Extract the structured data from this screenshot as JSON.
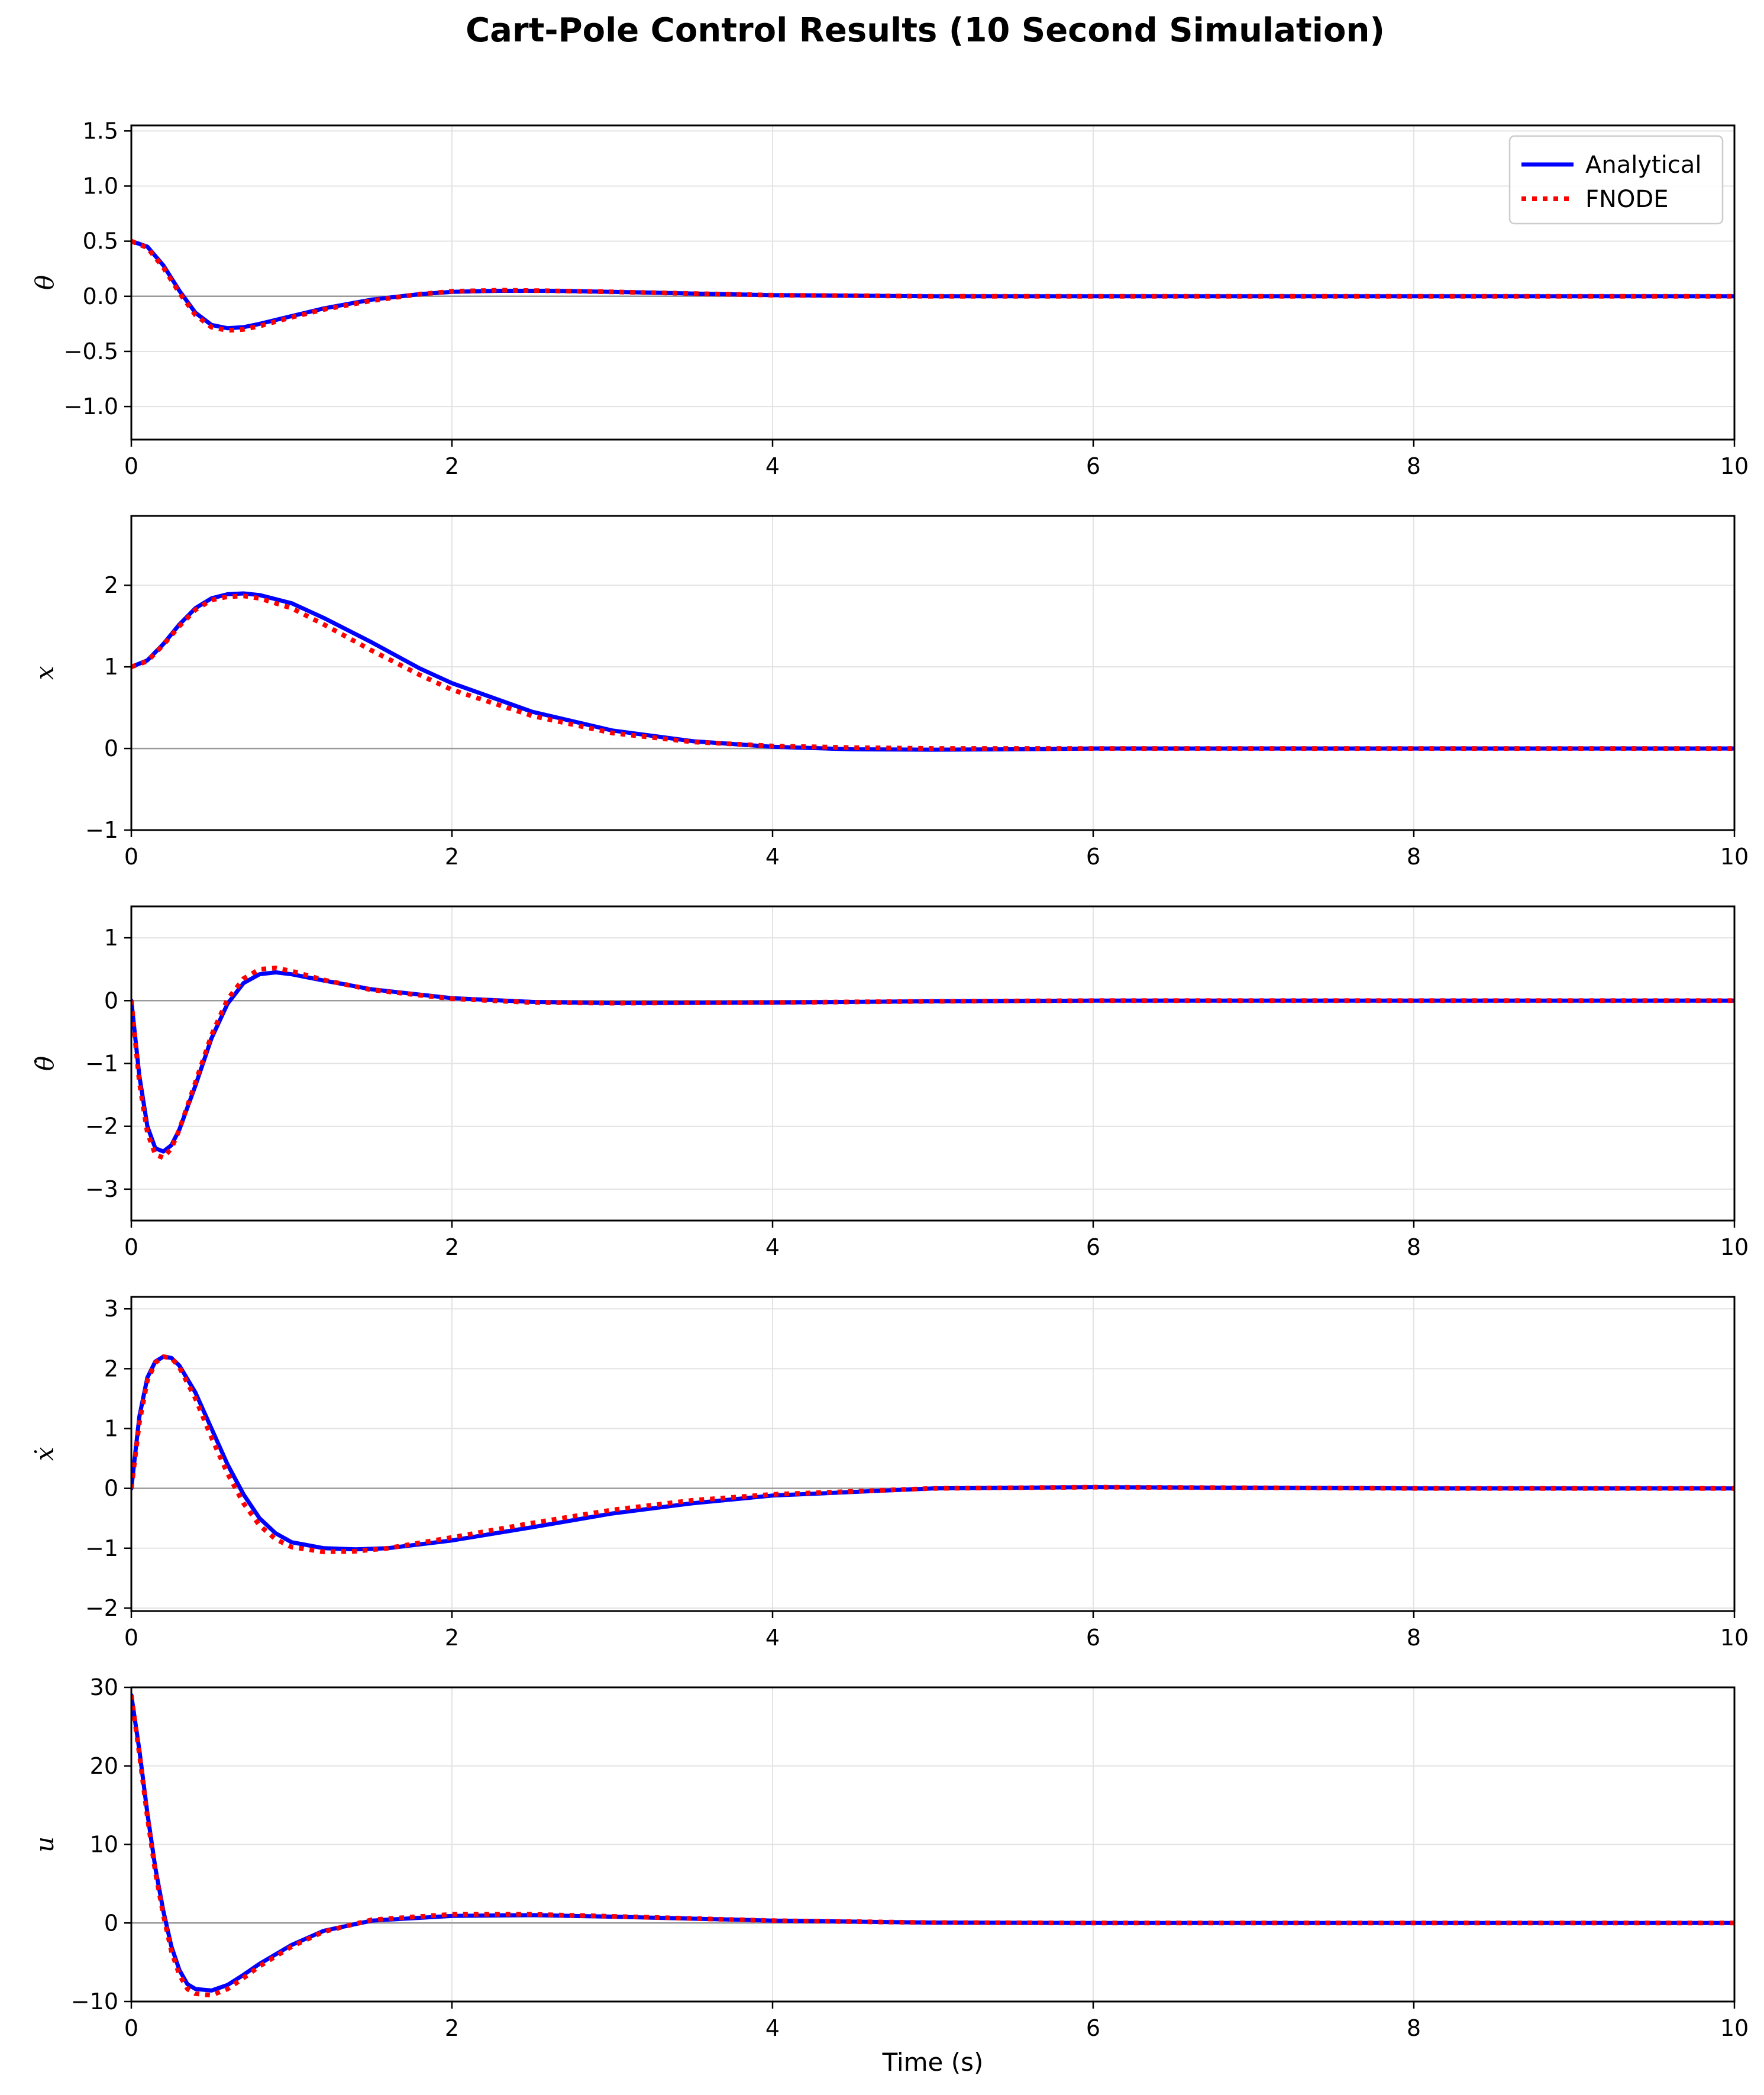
{
  "figure": {
    "title": "Cart-Pole Control Results (10 Second Simulation)",
    "xlabel": "Time (s)"
  },
  "legend": {
    "placement": "top-right of first panel",
    "entries": [
      {
        "name": "Analytical",
        "color": "#0000ff",
        "style": "solid"
      },
      {
        "name": "FNODE",
        "color": "#ff0000",
        "style": "dotted"
      }
    ]
  },
  "chart_data": [
    {
      "type": "line",
      "ylabel": "θ",
      "xlim": [
        0,
        10
      ],
      "ylim": [
        -1.3,
        1.55
      ],
      "xticks": [
        0,
        2,
        4,
        6,
        8,
        10
      ],
      "yticks": [
        -1.0,
        -0.5,
        0.0,
        0.5,
        1.0,
        1.5
      ],
      "ytick_labels": [
        "−1.0",
        "−0.5",
        "0.0",
        "0.5",
        "1.0",
        "1.5"
      ],
      "grid": true,
      "series": [
        {
          "name": "Analytical",
          "color": "#0000ff",
          "style": "solid",
          "x": [
            0,
            0.1,
            0.2,
            0.3,
            0.4,
            0.5,
            0.6,
            0.7,
            0.8,
            1.0,
            1.2,
            1.5,
            1.8,
            2.0,
            2.3,
            2.6,
            3.0,
            3.5,
            4.0,
            5.0,
            6.0,
            8.0,
            10.0
          ],
          "y": [
            0.5,
            0.45,
            0.28,
            0.05,
            -0.15,
            -0.26,
            -0.29,
            -0.28,
            -0.25,
            -0.18,
            -0.11,
            -0.03,
            0.02,
            0.04,
            0.05,
            0.05,
            0.04,
            0.025,
            0.01,
            0.0,
            0.0,
            0.0,
            0.0
          ]
        },
        {
          "name": "FNODE",
          "color": "#ff0000",
          "style": "dotted",
          "x": [
            0,
            0.1,
            0.2,
            0.3,
            0.4,
            0.5,
            0.6,
            0.7,
            0.8,
            1.0,
            1.2,
            1.5,
            1.8,
            2.0,
            2.3,
            2.6,
            3.0,
            3.5,
            4.0,
            5.0,
            6.0,
            8.0,
            10.0
          ],
          "y": [
            0.5,
            0.44,
            0.26,
            0.03,
            -0.17,
            -0.28,
            -0.31,
            -0.3,
            -0.27,
            -0.19,
            -0.12,
            -0.04,
            0.02,
            0.045,
            0.055,
            0.05,
            0.04,
            0.025,
            0.01,
            0.0,
            0.0,
            0.0,
            0.0
          ]
        }
      ]
    },
    {
      "type": "line",
      "ylabel": "x",
      "xlim": [
        0,
        10
      ],
      "ylim": [
        -1.0,
        2.85
      ],
      "xticks": [
        0,
        2,
        4,
        6,
        8,
        10
      ],
      "yticks": [
        -1,
        0,
        1,
        2
      ],
      "ytick_labels": [
        "−1",
        "0",
        "1",
        "2"
      ],
      "grid": true,
      "series": [
        {
          "name": "Analytical",
          "color": "#0000ff",
          "style": "solid",
          "x": [
            0,
            0.1,
            0.2,
            0.3,
            0.4,
            0.5,
            0.6,
            0.7,
            0.8,
            1.0,
            1.2,
            1.5,
            1.8,
            2.0,
            2.5,
            3.0,
            3.5,
            4.0,
            4.5,
            5.0,
            5.5,
            6.0,
            8.0,
            10.0
          ],
          "y": [
            1.0,
            1.08,
            1.28,
            1.52,
            1.72,
            1.84,
            1.89,
            1.9,
            1.88,
            1.78,
            1.6,
            1.3,
            0.98,
            0.8,
            0.45,
            0.22,
            0.09,
            0.02,
            -0.01,
            -0.015,
            -0.01,
            0.0,
            0.0,
            0.0
          ]
        },
        {
          "name": "FNODE",
          "color": "#ff0000",
          "style": "dotted",
          "x": [
            0,
            0.1,
            0.2,
            0.3,
            0.4,
            0.5,
            0.6,
            0.7,
            0.8,
            1.0,
            1.2,
            1.5,
            1.8,
            2.0,
            2.5,
            3.0,
            3.5,
            4.0,
            4.5,
            5.0,
            5.5,
            6.0,
            8.0,
            10.0
          ],
          "y": [
            1.0,
            1.07,
            1.27,
            1.5,
            1.7,
            1.82,
            1.86,
            1.87,
            1.84,
            1.72,
            1.52,
            1.2,
            0.9,
            0.72,
            0.4,
            0.19,
            0.08,
            0.03,
            0.01,
            0.0,
            0.0,
            0.0,
            0.0,
            0.0
          ]
        }
      ]
    },
    {
      "type": "line",
      "ylabel": "θ̇",
      "xlim": [
        0,
        10
      ],
      "ylim": [
        -3.5,
        1.5
      ],
      "xticks": [
        0,
        2,
        4,
        6,
        8,
        10
      ],
      "yticks": [
        -3,
        -2,
        -1,
        0,
        1
      ],
      "ytick_labels": [
        "−3",
        "−2",
        "−1",
        "0",
        "1"
      ],
      "grid": true,
      "series": [
        {
          "name": "Analytical",
          "color": "#0000ff",
          "style": "solid",
          "x": [
            0,
            0.05,
            0.1,
            0.15,
            0.2,
            0.25,
            0.3,
            0.4,
            0.5,
            0.6,
            0.7,
            0.8,
            0.9,
            1.0,
            1.2,
            1.5,
            2.0,
            2.5,
            3.0,
            4.0,
            5.0,
            6.0,
            8.0,
            10.0
          ],
          "y": [
            0,
            -1.2,
            -2.0,
            -2.35,
            -2.4,
            -2.3,
            -2.05,
            -1.35,
            -0.6,
            -0.05,
            0.28,
            0.42,
            0.45,
            0.42,
            0.32,
            0.18,
            0.04,
            -0.02,
            -0.04,
            -0.03,
            -0.01,
            0.0,
            0.0,
            0.0
          ]
        },
        {
          "name": "FNODE",
          "color": "#ff0000",
          "style": "dotted",
          "x": [
            0,
            0.05,
            0.1,
            0.15,
            0.2,
            0.25,
            0.3,
            0.4,
            0.5,
            0.6,
            0.7,
            0.8,
            0.9,
            1.0,
            1.2,
            1.5,
            2.0,
            2.5,
            3.0,
            4.0,
            5.0,
            6.0,
            8.0,
            10.0
          ],
          "y": [
            0,
            -1.3,
            -2.1,
            -2.45,
            -2.5,
            -2.35,
            -2.05,
            -1.3,
            -0.55,
            0.02,
            0.35,
            0.5,
            0.52,
            0.47,
            0.33,
            0.17,
            0.03,
            -0.03,
            -0.04,
            -0.03,
            -0.01,
            0.0,
            0.0,
            0.0
          ]
        }
      ]
    },
    {
      "type": "line",
      "ylabel": "ẋ",
      "xlim": [
        0,
        10
      ],
      "ylim": [
        -2.05,
        3.2
      ],
      "xticks": [
        0,
        2,
        4,
        6,
        8,
        10
      ],
      "yticks": [
        -2,
        -1,
        0,
        1,
        2,
        3
      ],
      "ytick_labels": [
        "−2",
        "−1",
        "0",
        "1",
        "2",
        "3"
      ],
      "grid": true,
      "series": [
        {
          "name": "Analytical",
          "color": "#0000ff",
          "style": "solid",
          "x": [
            0,
            0.05,
            0.1,
            0.15,
            0.2,
            0.25,
            0.3,
            0.4,
            0.5,
            0.6,
            0.7,
            0.8,
            0.9,
            1.0,
            1.2,
            1.4,
            1.6,
            2.0,
            2.5,
            3.0,
            3.5,
            4.0,
            5.0,
            6.0,
            8.0,
            10.0
          ],
          "y": [
            0,
            1.2,
            1.85,
            2.12,
            2.2,
            2.18,
            2.05,
            1.6,
            1.0,
            0.4,
            -0.1,
            -0.5,
            -0.75,
            -0.9,
            -1.0,
            -1.02,
            -1.0,
            -0.87,
            -0.65,
            -0.42,
            -0.25,
            -0.12,
            0.0,
            0.02,
            0.0,
            0.0
          ]
        },
        {
          "name": "FNODE",
          "color": "#ff0000",
          "style": "dotted",
          "x": [
            0,
            0.05,
            0.1,
            0.15,
            0.2,
            0.25,
            0.3,
            0.4,
            0.5,
            0.6,
            0.7,
            0.8,
            0.9,
            1.0,
            1.2,
            1.4,
            1.6,
            2.0,
            2.5,
            3.0,
            3.5,
            4.0,
            5.0,
            6.0,
            8.0,
            10.0
          ],
          "y": [
            0,
            1.1,
            1.8,
            2.1,
            2.2,
            2.18,
            2.02,
            1.5,
            0.85,
            0.25,
            -0.25,
            -0.62,
            -0.85,
            -0.98,
            -1.06,
            -1.05,
            -1.0,
            -0.82,
            -0.58,
            -0.36,
            -0.2,
            -0.1,
            0.0,
            0.02,
            0.0,
            0.0
          ]
        }
      ]
    },
    {
      "type": "line",
      "ylabel": "u",
      "xlim": [
        0,
        10
      ],
      "ylim": [
        -10,
        30
      ],
      "xticks": [
        0,
        2,
        4,
        6,
        8,
        10
      ],
      "yticks": [
        -10,
        0,
        10,
        20,
        30
      ],
      "ytick_labels": [
        "−10",
        "0",
        "10",
        "20",
        "30"
      ],
      "grid": true,
      "series": [
        {
          "name": "Analytical",
          "color": "#0000ff",
          "style": "solid",
          "x": [
            0,
            0.05,
            0.1,
            0.15,
            0.2,
            0.25,
            0.3,
            0.35,
            0.4,
            0.5,
            0.6,
            0.7,
            0.8,
            1.0,
            1.2,
            1.5,
            2.0,
            2.5,
            3.0,
            4.0,
            5.0,
            6.0,
            8.0,
            10.0
          ],
          "y": [
            29,
            22,
            14,
            7,
            1.5,
            -3,
            -6,
            -7.8,
            -8.4,
            -8.6,
            -7.9,
            -6.6,
            -5.2,
            -2.8,
            -1.0,
            0.3,
            0.9,
            1.0,
            0.8,
            0.3,
            0.05,
            0.0,
            0.0,
            0.0
          ]
        },
        {
          "name": "FNODE",
          "color": "#ff0000",
          "style": "dotted",
          "x": [
            0,
            0.05,
            0.1,
            0.15,
            0.2,
            0.25,
            0.3,
            0.35,
            0.4,
            0.5,
            0.6,
            0.7,
            0.8,
            1.0,
            1.2,
            1.5,
            2.0,
            2.5,
            3.0,
            4.0,
            5.0,
            6.0,
            8.0,
            10.0
          ],
          "y": [
            29,
            21.5,
            13.5,
            6.5,
            1.0,
            -3.6,
            -6.6,
            -8.4,
            -9.0,
            -9.2,
            -8.4,
            -7.0,
            -5.5,
            -3.0,
            -1.1,
            0.4,
            1.1,
            1.1,
            0.85,
            0.3,
            0.05,
            0.0,
            0.0,
            0.0
          ]
        }
      ]
    }
  ]
}
